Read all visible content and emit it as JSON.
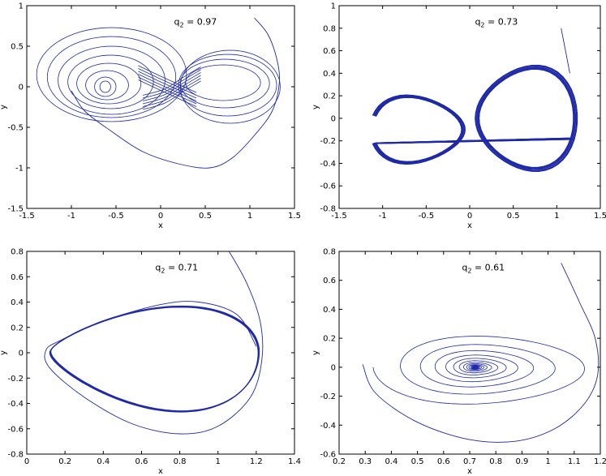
{
  "figure": {
    "line_color": "#1f2aa8",
    "frame_color": "#000000"
  },
  "chart_data": [
    {
      "type": "line",
      "title": "",
      "annotation": {
        "label": "q",
        "subscript": "2",
        "value": " = 0.97"
      },
      "xlabel": "x",
      "ylabel": "y",
      "xlim": [
        -1.5,
        1.5
      ],
      "ylim": [
        -1.5,
        1.0
      ],
      "xticks": [
        "-1.5",
        "-1",
        "-0.5",
        "0",
        "0.5",
        "1",
        "1.5"
      ],
      "yticks": [
        "-1.5",
        "-1",
        "-0.5",
        "0",
        "0.5",
        "1"
      ],
      "grid": false,
      "series": [
        {
          "kind": "chaotic-double-scroll",
          "start": [
            1.05,
            0.85
          ],
          "transient": [
            [
              1.05,
              0.85
            ],
            [
              1.2,
              0.65
            ],
            [
              1.3,
              0.35
            ],
            [
              1.33,
              0.05
            ],
            [
              1.25,
              -0.3
            ],
            [
              1.05,
              -0.6
            ],
            [
              0.8,
              -0.88
            ],
            [
              0.55,
              -1.0
            ],
            [
              0.2,
              -0.95
            ],
            [
              -0.2,
              -0.8
            ],
            [
              -0.55,
              -0.55
            ],
            [
              -0.85,
              -0.3
            ],
            [
              -1.0,
              -0.05
            ]
          ],
          "loops": [
            {
              "c": [
                -0.62,
                0.0
              ],
              "rx": 0.06,
              "ry": 0.07
            },
            {
              "c": [
                -0.62,
                0.0
              ],
              "rx": 0.12,
              "ry": 0.12
            },
            {
              "c": [
                -0.6,
                0.02
              ],
              "rx": 0.24,
              "ry": 0.18
            },
            {
              "c": [
                -0.58,
                0.04
              ],
              "rx": 0.36,
              "ry": 0.25
            },
            {
              "c": [
                -0.56,
                0.06
              ],
              "rx": 0.48,
              "ry": 0.33
            },
            {
              "c": [
                -0.55,
                0.08
              ],
              "rx": 0.6,
              "ry": 0.42
            },
            {
              "c": [
                -0.55,
                0.12
              ],
              "rx": 0.72,
              "ry": 0.5
            },
            {
              "c": [
                -0.55,
                0.15
              ],
              "rx": 0.84,
              "ry": 0.58
            },
            {
              "c": [
                0.7,
                0.05
              ],
              "rx": 0.42,
              "ry": 0.22
            },
            {
              "c": [
                0.72,
                0.04
              ],
              "rx": 0.5,
              "ry": 0.3
            },
            {
              "c": [
                0.75,
                0.02
              ],
              "rx": 0.55,
              "ry": 0.38
            },
            {
              "c": [
                0.78,
                0.0
              ],
              "rx": 0.56,
              "ry": 0.45
            }
          ]
        }
      ]
    },
    {
      "type": "line",
      "title": "",
      "annotation": {
        "label": "q",
        "subscript": "2",
        "value": " = 0.73"
      },
      "xlabel": "x",
      "ylabel": "y",
      "xlim": [
        -1.5,
        1.5
      ],
      "ylim": [
        -0.8,
        1.0
      ],
      "xticks": [
        "-1.5",
        "-1",
        "-0.5",
        "0",
        "0.5",
        "1",
        "1.5"
      ],
      "yticks": [
        "-0.8",
        "-0.6",
        "-0.4",
        "-0.2",
        "0",
        "0.2",
        "0.4",
        "0.6",
        "0.8",
        "1"
      ],
      "grid": false,
      "series": [
        {
          "kind": "figure-eight-attractor",
          "start": [
            1.05,
            0.8
          ],
          "transient": [
            [
              1.05,
              0.8
            ],
            [
              1.1,
              0.6
            ],
            [
              1.15,
              0.4
            ]
          ],
          "left_lobe": {
            "c": [
              -0.6,
              -0.1
            ],
            "rx": 0.55,
            "ry": 0.3
          },
          "right_lobe": {
            "c": [
              0.65,
              0.0
            ],
            "rx": 0.62,
            "ry": 0.62
          },
          "band_width": 0.12
        }
      ]
    },
    {
      "type": "line",
      "title": "",
      "annotation": {
        "label": "q",
        "subscript": "2",
        "value": " = 0.71"
      },
      "xlabel": "x",
      "ylabel": "y",
      "xlim": [
        0,
        1.4
      ],
      "ylim": [
        -0.8,
        0.8
      ],
      "xticks": [
        "0",
        "0.2",
        "0.4",
        "0.6",
        "0.8",
        "1",
        "1.2",
        "1.4"
      ],
      "yticks": [
        "-0.8",
        "-0.6",
        "-0.4",
        "-0.2",
        "0",
        "0.2",
        "0.4",
        "0.6",
        "0.8"
      ],
      "grid": false,
      "series": [
        {
          "kind": "limit-cycle",
          "start": [
            1.05,
            0.82
          ],
          "transient": [
            [
              1.05,
              0.82
            ],
            [
              1.15,
              0.55
            ],
            [
              1.22,
              0.25
            ],
            [
              1.23,
              -0.05
            ],
            [
              1.17,
              -0.35
            ],
            [
              1.0,
              -0.58
            ],
            [
              0.8,
              -0.64
            ],
            [
              0.55,
              -0.56
            ],
            [
              0.3,
              -0.35
            ],
            [
              0.12,
              -0.12
            ],
            [
              0.1,
              0.02
            ],
            [
              0.18,
              0.1
            ],
            [
              0.4,
              0.25
            ],
            [
              0.7,
              0.38
            ],
            [
              0.9,
              0.4
            ],
            [
              1.1,
              0.3
            ],
            [
              1.2,
              0.05
            ]
          ],
          "cycle": {
            "x_min": 0.12,
            "x_max": 1.21,
            "y_max": 0.4,
            "y_min": -0.52,
            "x_at_top": 0.85,
            "x_at_bottom": 0.8
          }
        }
      ]
    },
    {
      "type": "line",
      "title": "",
      "annotation": {
        "label": "q",
        "subscript": "2",
        "value": " = 0.61"
      },
      "xlabel": "x",
      "ylabel": "y",
      "xlim": [
        0.2,
        1.2
      ],
      "ylim": [
        -0.6,
        0.8
      ],
      "xticks": [
        "0.2",
        "0.3",
        "0.4",
        "0.5",
        "0.6",
        "0.7",
        "0.8",
        "0.9",
        "1",
        "1.1",
        "1.2"
      ],
      "yticks": [
        "-0.6",
        "-0.4",
        "-0.2",
        "0",
        "0.2",
        "0.4",
        "0.6",
        "0.8"
      ],
      "grid": false,
      "series": [
        {
          "kind": "stable-focus-spiral",
          "start": [
            1.05,
            0.72
          ],
          "transient": [
            [
              1.05,
              0.72
            ],
            [
              1.12,
              0.45
            ],
            [
              1.18,
              0.2
            ],
            [
              1.19,
              -0.05
            ],
            [
              1.14,
              -0.25
            ],
            [
              1.03,
              -0.42
            ],
            [
              0.88,
              -0.51
            ],
            [
              0.7,
              -0.5
            ],
            [
              0.5,
              -0.38
            ],
            [
              0.34,
              -0.18
            ],
            [
              0.29,
              0.02
            ]
          ],
          "focus": [
            0.72,
            0.0
          ],
          "outer_rx": 0.44,
          "outer_ry": 0.27
        }
      ]
    }
  ]
}
